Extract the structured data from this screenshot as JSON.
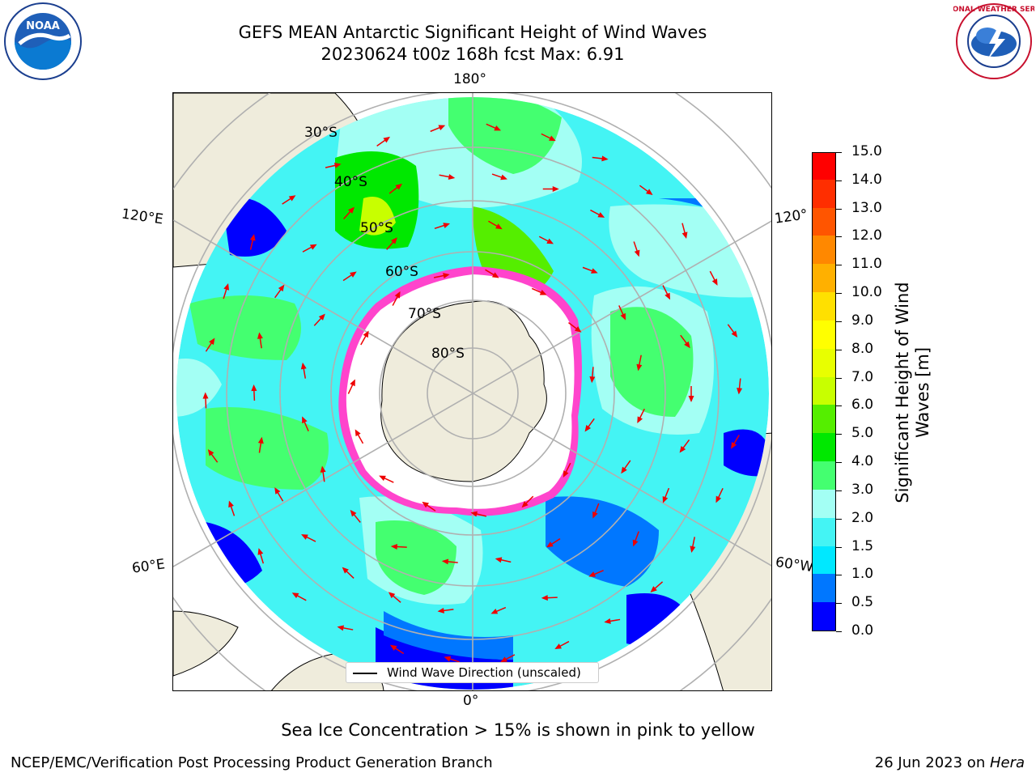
{
  "header": {
    "title_line1": "GEFS MEAN Antarctic Significant Height of Wind Waves",
    "title_line2": "20230624 t00z 168h fcst   Max: 6.91"
  },
  "logos": {
    "left_text": "NOAA",
    "right_ring": "NATIONAL WEATHER SERVICE"
  },
  "map": {
    "longitude_labels": {
      "top": "180°",
      "bottom": "0°",
      "upper_left": "120°E",
      "upper_right": "120°",
      "lower_left": "60°E",
      "lower_right": "60°W"
    },
    "latitude_labels": [
      "30°S",
      "40°S",
      "50°S",
      "60°S",
      "70°S",
      "80°S"
    ],
    "colors": {
      "land": "#efecdc",
      "ice": "#ffffff",
      "ice_edge": "#ff44cc",
      "arrow": "#ee0000"
    }
  },
  "colorbar": {
    "title_line1": "Significant Height of Wind",
    "title_line2": "Waves [m]",
    "ticks": [
      "0.0",
      "0.5",
      "1.0",
      "1.5",
      "2.0",
      "3.0",
      "4.0",
      "5.0",
      "6.0",
      "7.0",
      "8.0",
      "9.0",
      "10.0",
      "11.0",
      "12.0",
      "13.0",
      "14.0",
      "15.0"
    ],
    "colors": [
      "#0000ff",
      "#0077ff",
      "#00e8ff",
      "#44f4f4",
      "#a3fff4",
      "#44ff70",
      "#00e800",
      "#55ee00",
      "#c8ff00",
      "#e8ff00",
      "#ffff00",
      "#ffe000",
      "#ffb000",
      "#ff8800",
      "#ff5500",
      "#ff2e00",
      "#ff0000"
    ]
  },
  "legend": {
    "label": "Wind Wave Direction (unscaled)"
  },
  "footer": {
    "note": "Sea Ice Concentration > 15% is shown in pink to yellow",
    "credit_left": "NCEP/EMC/Verification Post Processing Product Generation Branch",
    "credit_right_date": "26 Jun 2023 on ",
    "credit_right_host": "Hera"
  }
}
